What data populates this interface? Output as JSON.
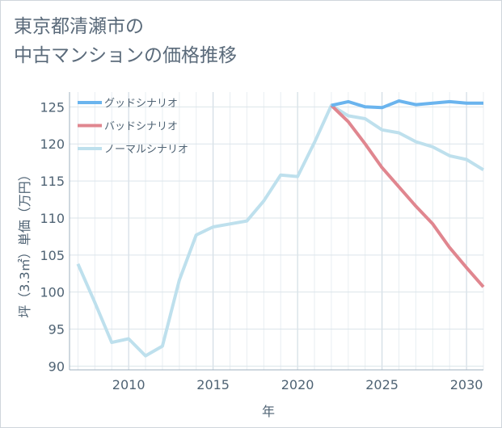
{
  "title": "東京都清瀬市の\n中古マンションの価格推移",
  "chart_data": {
    "type": "line",
    "xlabel": "年",
    "ylabel": "坪（3.3㎡）単価（万円）",
    "xlim": [
      2006.5,
      2031
    ],
    "ylim": [
      89.5,
      127
    ],
    "xticks": [
      2010,
      2015,
      2020,
      2025,
      2030
    ],
    "yticks": [
      90,
      95,
      100,
      105,
      110,
      115,
      120,
      125
    ],
    "legend_position": "top-left",
    "grid": true,
    "series": [
      {
        "name": "グッドシナリオ",
        "color": "#6ab4ee",
        "x": [
          2022,
          2023,
          2024,
          2025,
          2026,
          2027,
          2028,
          2029,
          2030,
          2031
        ],
        "y": [
          125.2,
          125.7,
          125.0,
          124.9,
          125.8,
          125.3,
          125.5,
          125.7,
          125.5,
          125.5
        ]
      },
      {
        "name": "バッドシナリオ",
        "color": "#e0868f",
        "x": [
          2022,
          2023,
          2024,
          2025,
          2026,
          2027,
          2028,
          2029,
          2030,
          2031
        ],
        "y": [
          125.2,
          123.0,
          120.0,
          116.8,
          114.2,
          111.6,
          109.2,
          106.0,
          103.3,
          100.7
        ]
      },
      {
        "name": "ノーマルシナリオ",
        "color": "#bee0ed",
        "x": [
          2007,
          2008,
          2009,
          2010,
          2011,
          2012,
          2013,
          2014,
          2015,
          2016,
          2017,
          2018,
          2019,
          2020,
          2021,
          2022,
          2023,
          2024,
          2025,
          2026,
          2027,
          2028,
          2029,
          2030,
          2031
        ],
        "y": [
          103.8,
          98.6,
          93.2,
          93.7,
          91.4,
          92.7,
          101.6,
          107.7,
          108.8,
          109.2,
          109.6,
          112.3,
          115.8,
          115.6,
          120.2,
          125.2,
          123.8,
          123.4,
          121.9,
          121.5,
          120.3,
          119.6,
          118.4,
          117.9,
          116.5
        ]
      }
    ]
  }
}
